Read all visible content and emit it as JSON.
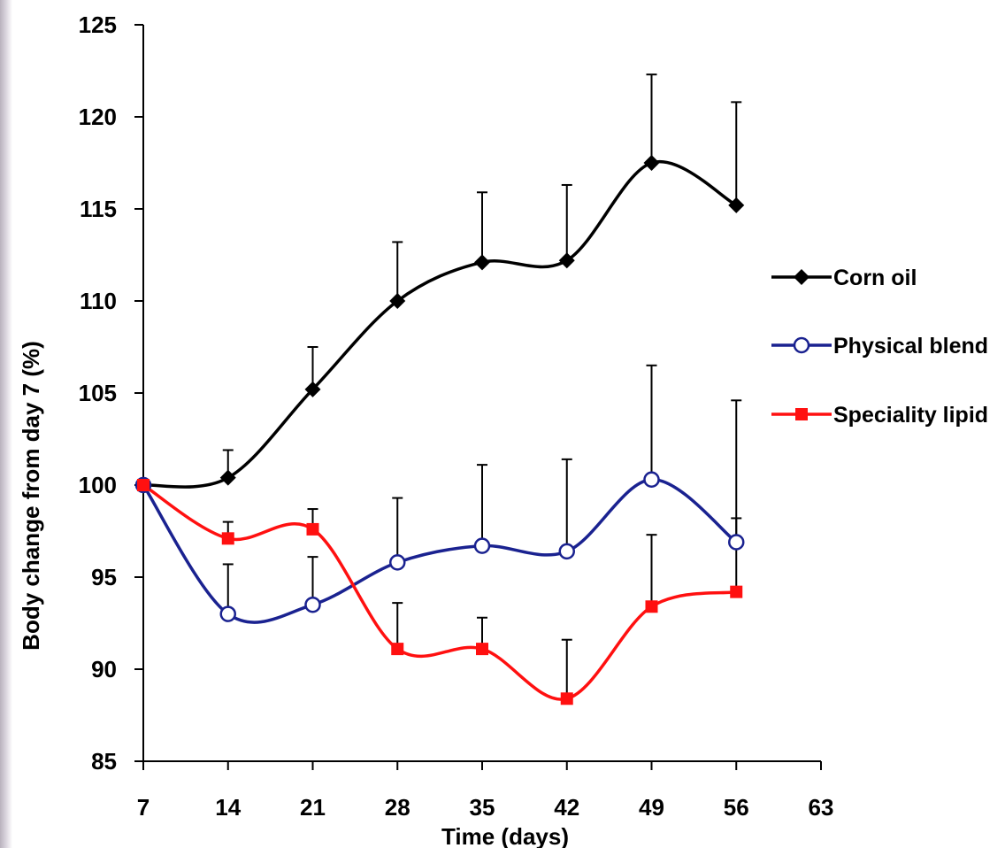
{
  "chart_data": {
    "type": "line",
    "xlabel": "Time (days)",
    "ylabel": "Body change from day 7 (%)",
    "xlim": [
      7,
      63
    ],
    "ylim": [
      85,
      125
    ],
    "x_ticks": [
      7,
      14,
      21,
      28,
      35,
      42,
      49,
      56,
      63
    ],
    "y_ticks": [
      85,
      90,
      95,
      100,
      105,
      110,
      115,
      120,
      125
    ],
    "x": [
      7,
      14,
      21,
      28,
      35,
      42,
      49,
      56
    ],
    "grid": false,
    "legend_position": "right",
    "series": [
      {
        "name": "Corn oil",
        "color": "#000000",
        "marker": "diamond",
        "values": [
          100.0,
          100.4,
          105.2,
          110.0,
          112.1,
          112.2,
          117.5,
          115.2
        ],
        "error_upper": [
          0,
          1.5,
          2.3,
          3.2,
          3.8,
          4.1,
          4.8,
          5.6
        ]
      },
      {
        "name": "Physical blend",
        "color": "#1a2290",
        "marker": "open-circle",
        "values": [
          100.0,
          93.0,
          93.5,
          95.8,
          96.7,
          96.4,
          100.3,
          96.9
        ],
        "error_upper": [
          0,
          2.7,
          2.6,
          3.5,
          4.4,
          5.0,
          6.2,
          7.7
        ]
      },
      {
        "name": "Speciality lipid",
        "color": "#ff1010",
        "marker": "square",
        "values": [
          100.0,
          97.1,
          97.6,
          91.1,
          91.1,
          88.4,
          93.4,
          94.2
        ],
        "error_upper": [
          0,
          0.9,
          1.1,
          2.5,
          1.7,
          3.2,
          3.9,
          4.0
        ]
      }
    ]
  }
}
